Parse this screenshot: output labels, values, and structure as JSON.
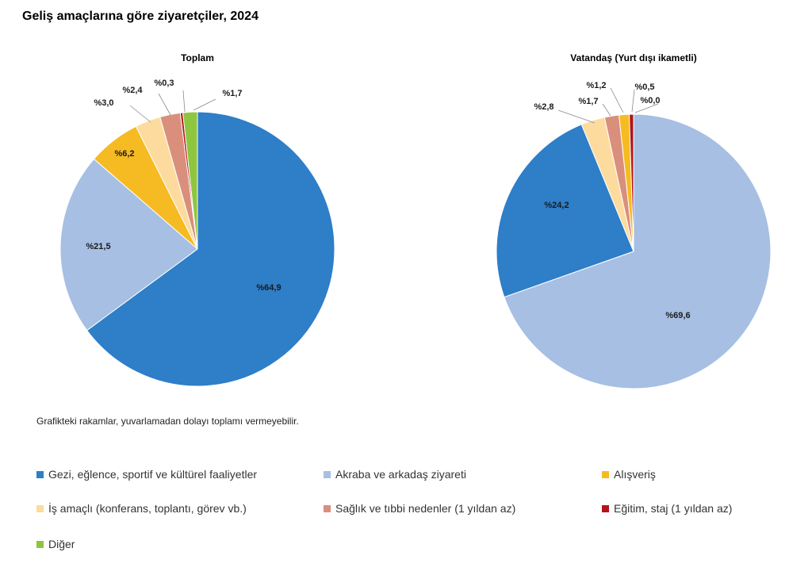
{
  "title": "Geliş amaçlarına göre ziyaretçiler, 2024",
  "footnote": "Grafikteki rakamlar, yuvarlamadan dolayı toplamı vermeyebilir.",
  "colors": {
    "gezi": "#2e7ec8",
    "akraba": "#a6bfe3",
    "alisveris": "#f6bb22",
    "is": "#fddb9e",
    "saglik": "#d98f7c",
    "egitim": "#b3141b",
    "diger": "#8ec63f"
  },
  "legend": [
    {
      "key": "gezi",
      "label": "Gezi, eğlence, sportif ve kültürel faaliyetler"
    },
    {
      "key": "akraba",
      "label": "Akraba ve arkadaş ziyareti"
    },
    {
      "key": "alisveris",
      "label": "Alışveriş"
    },
    {
      "key": "is",
      "label": "İş amaçlı (konferans, toplantı, görev vb.)"
    },
    {
      "key": "saglik",
      "label": "Sağlık ve tıbbi nedenler (1 yıldan az)"
    },
    {
      "key": "egitim",
      "label": "Eğitim, staj (1 yıldan az)"
    },
    {
      "key": "diger",
      "label": "Diğer"
    }
  ],
  "chart_data": [
    {
      "type": "pie",
      "title": "Toplam",
      "slices": [
        {
          "key": "gezi",
          "value": 64.9,
          "label": "%64,9"
        },
        {
          "key": "akraba",
          "value": 21.5,
          "label": "%21,5"
        },
        {
          "key": "alisveris",
          "value": 6.2,
          "label": "%6,2"
        },
        {
          "key": "is",
          "value": 3.0,
          "label": "%3,0"
        },
        {
          "key": "saglik",
          "value": 2.4,
          "label": "%2,4"
        },
        {
          "key": "egitim",
          "value": 0.3,
          "label": "%0,3"
        },
        {
          "key": "diger",
          "value": 1.7,
          "label": "%1,7"
        }
      ]
    },
    {
      "type": "pie",
      "title": "Vatandaş (Yurt dışı ikametli)",
      "slices": [
        {
          "key": "akraba",
          "value": 69.6,
          "label": "%69,6"
        },
        {
          "key": "gezi",
          "value": 24.2,
          "label": "%24,2"
        },
        {
          "key": "is",
          "value": 2.8,
          "label": "%2,8"
        },
        {
          "key": "saglik",
          "value": 1.7,
          "label": "%1,7"
        },
        {
          "key": "alisveris",
          "value": 1.2,
          "label": "%1,2"
        },
        {
          "key": "egitim",
          "value": 0.5,
          "label": "%0,5"
        },
        {
          "key": "diger",
          "value": 0.0,
          "label": "%0,0"
        }
      ]
    }
  ]
}
